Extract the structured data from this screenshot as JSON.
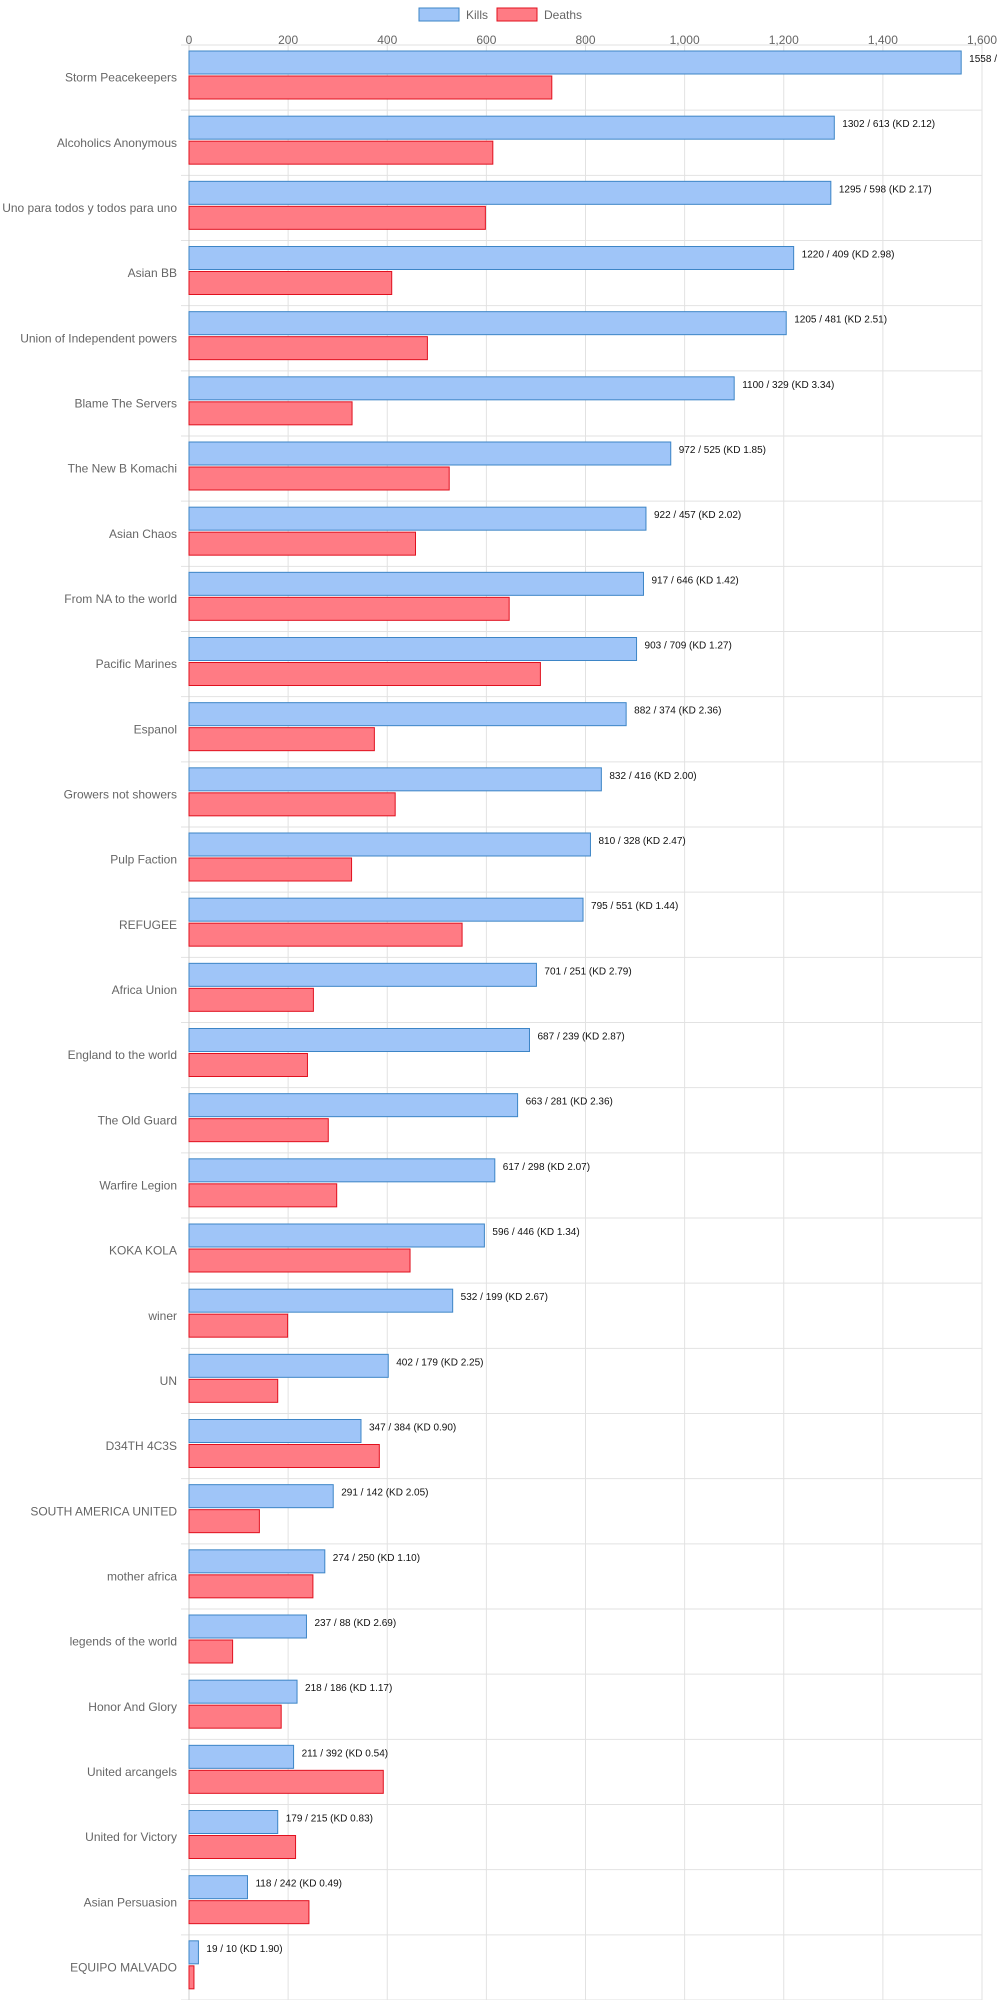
{
  "legend": {
    "kills_label": "Kills",
    "deaths_label": "Deaths"
  },
  "colors": {
    "kills_fill": "#9fc5f8",
    "kills_stroke": "#3d85c6",
    "deaths_fill": "#ff7b84",
    "deaths_stroke": "#e0101e",
    "grid": "#e2e2e2",
    "axis_text": "#666666",
    "data_label": "#111111"
  },
  "chart_data": {
    "type": "bar",
    "orientation": "horizontal",
    "legend_position": "top",
    "grid": true,
    "xlim": [
      0,
      1600
    ],
    "x_ticks": [
      "0",
      "200",
      "400",
      "600",
      "800",
      "1,000",
      "1,200",
      "1,400",
      "1,600"
    ],
    "x_tick_values": [
      0,
      200,
      400,
      600,
      800,
      1000,
      1200,
      1400,
      1600
    ],
    "categories": [
      "Storm Peacekeepers",
      "Alcoholics Anonymous",
      "Uno para todos y todos para uno",
      "Asian BB",
      "Union of Independent powers",
      "Blame The Servers",
      "The New B Komachi",
      "Asian Chaos",
      "From NA to the world",
      "Pacific Marines",
      "Espanol",
      "Growers not showers",
      "Pulp Faction",
      "REFUGEE",
      "Africa Union",
      "England to the world",
      "The Old Guard",
      "Warfire Legion",
      "KOKA KOLA",
      "winer",
      "UN",
      "D34TH 4C3S",
      "SOUTH AMERICA UNITED",
      "mother africa",
      "legends of the world",
      "Honor And Glory",
      "United arcangels",
      "United for Victory",
      "Asian Persuasion",
      "EQUIPO MALVADO"
    ],
    "series": [
      {
        "name": "Kills",
        "values": [
          1558,
          1302,
          1295,
          1220,
          1205,
          1100,
          972,
          922,
          917,
          903,
          882,
          832,
          810,
          795,
          701,
          687,
          663,
          617,
          596,
          532,
          402,
          347,
          291,
          274,
          237,
          218,
          211,
          179,
          118,
          19
        ]
      },
      {
        "name": "Deaths",
        "values": [
          732,
          613,
          598,
          409,
          481,
          329,
          525,
          457,
          646,
          709,
          374,
          416,
          328,
          551,
          251,
          239,
          281,
          298,
          446,
          199,
          179,
          384,
          142,
          250,
          88,
          186,
          392,
          215,
          242,
          10
        ]
      }
    ],
    "data_labels": [
      "1558 /",
      "1302 / 613 (KD 2.12)",
      "1295 / 598 (KD 2.17)",
      "1220 / 409 (KD 2.98)",
      "1205 / 481 (KD 2.51)",
      "1100 / 329 (KD 3.34)",
      "972 / 525 (KD 1.85)",
      "922 / 457 (KD 2.02)",
      "917 / 646 (KD 1.42)",
      "903 / 709 (KD 1.27)",
      "882 / 374 (KD 2.36)",
      "832 / 416 (KD 2.00)",
      "810 / 328 (KD 2.47)",
      "795 / 551 (KD 1.44)",
      "701 / 251 (KD 2.79)",
      "687 / 239 (KD 2.87)",
      "663 / 281 (KD 2.36)",
      "617 / 298 (KD 2.07)",
      "596 / 446 (KD 1.34)",
      "532 / 199 (KD 2.67)",
      "402 / 179 (KD 2.25)",
      "347 / 384 (KD 0.90)",
      "291 / 142 (KD 2.05)",
      "274 / 250 (KD 1.10)",
      "237 / 88 (KD 2.69)",
      "218 / 186 (KD 1.17)",
      "211 / 392 (KD 0.54)",
      "179 / 215 (KD 0.83)",
      "118 / 242 (KD 0.49)",
      "19 / 10 (KD 1.90)"
    ]
  }
}
